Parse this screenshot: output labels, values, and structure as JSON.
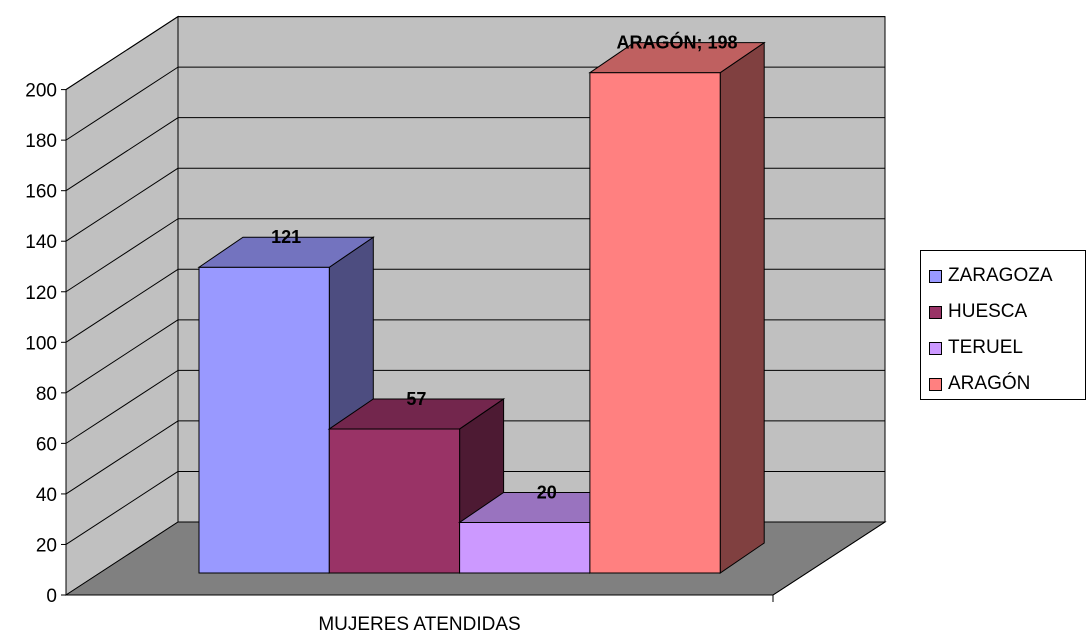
{
  "chart_data": {
    "type": "bar",
    "title": "",
    "xlabel": "",
    "ylabel": "",
    "categories": [
      "MUJERES ATENDIDAS"
    ],
    "series": [
      {
        "name": "ZARAGOZA",
        "values": [
          121
        ],
        "color": "#9999FF",
        "label": "121"
      },
      {
        "name": "HUESCA",
        "values": [
          57
        ],
        "color": "#993366",
        "label": "57"
      },
      {
        "name": "TERUEL",
        "values": [
          20
        ],
        "color": "#CC99FF",
        "label": "20"
      },
      {
        "name": "ARAGÓN",
        "values": [
          198
        ],
        "color": "#FF8080",
        "label": "ARAGÓN; 198"
      }
    ],
    "ylim": [
      0,
      200
    ],
    "yticks": [
      "0",
      "20",
      "40",
      "60",
      "80",
      "100",
      "120",
      "140",
      "160",
      "180",
      "200"
    ],
    "grid": true,
    "legend_position": "right",
    "wall_color": "#C0C0C0",
    "floor_color": "#808080"
  }
}
